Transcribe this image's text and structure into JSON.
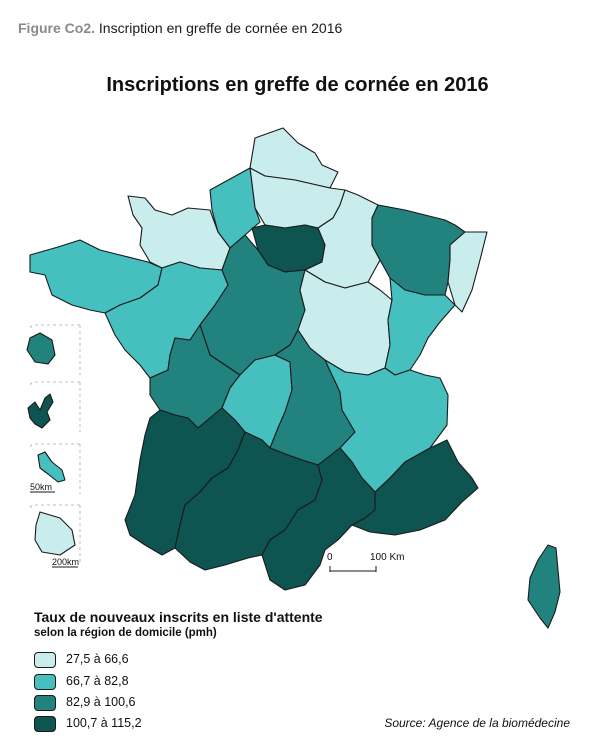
{
  "figure_caption": {
    "label": "Figure Co2.",
    "text": " Inscription en greffe de cornée en 2016"
  },
  "map_title": "Inscriptions en greffe de cornée en 2016",
  "legend": {
    "title": "Taux de nouveaux inscrits en liste d'attente",
    "subtitle": "selon la région de domicile (pmh)",
    "classes": [
      {
        "label": "27,5 à 66,6",
        "color": "#c9ecec"
      },
      {
        "label": "66,7 à 82,8",
        "color": "#46bfbf"
      },
      {
        "label": "82,9 à 100,6",
        "color": "#22827e"
      },
      {
        "label": "100,7 à 115,2",
        "color": "#0e5450"
      }
    ]
  },
  "scale_bar": {
    "start": "0",
    "end": "100 Km"
  },
  "insets": [
    {
      "name": "La Réunion",
      "class": 2
    },
    {
      "name": "Guadeloupe",
      "class": 3
    },
    {
      "name": "Martinique",
      "class": 1,
      "scale": "50km"
    },
    {
      "name": "Guyane",
      "class": 0,
      "scale": "200km"
    }
  ],
  "regions": [
    {
      "name": "Nord-Pas-de-Calais",
      "class": 0
    },
    {
      "name": "Picardie",
      "class": 0
    },
    {
      "name": "Haute-Normandie",
      "class": 1
    },
    {
      "name": "Basse-Normandie",
      "class": 0
    },
    {
      "name": "Île-de-France",
      "class": 3
    },
    {
      "name": "Champagne-Ardenne",
      "class": 0
    },
    {
      "name": "Lorraine",
      "class": 2
    },
    {
      "name": "Alsace",
      "class": 0
    },
    {
      "name": "Bretagne",
      "class": 1
    },
    {
      "name": "Pays de la Loire",
      "class": 1
    },
    {
      "name": "Centre",
      "class": 2
    },
    {
      "name": "Bourgogne",
      "class": 0
    },
    {
      "name": "Franche-Comté",
      "class": 1
    },
    {
      "name": "Poitou-Charentes",
      "class": 2
    },
    {
      "name": "Limousin",
      "class": 1
    },
    {
      "name": "Auvergne",
      "class": 2
    },
    {
      "name": "Rhône-Alpes",
      "class": 1
    },
    {
      "name": "Aquitaine",
      "class": 3
    },
    {
      "name": "Midi-Pyrénées",
      "class": 3
    },
    {
      "name": "Languedoc-Roussillon",
      "class": 3
    },
    {
      "name": "Provence-Alpes-Côte d'Azur",
      "class": 3
    },
    {
      "name": "Corse",
      "class": 2
    }
  ],
  "source": "Source: Agence de la biomédecine"
}
